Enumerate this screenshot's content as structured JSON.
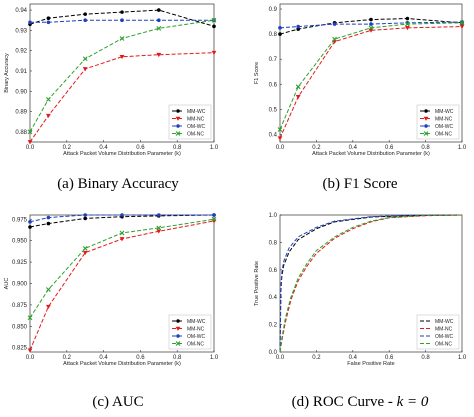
{
  "chart_data": [
    {
      "type": "line",
      "panel_index": "(a)",
      "caption": "(a) Binary Accuracy",
      "xlabel": "Attack Packet Volume Distribution Parameter (k)",
      "ylabel": "Binary Accuracy",
      "x": [
        0.0,
        0.1,
        0.3,
        0.5,
        0.7,
        1.0
      ],
      "xlim": [
        0.0,
        1.0
      ],
      "ylim": [
        0.875,
        0.943
      ],
      "xticks": [
        "0.0",
        "0.2",
        "0.4",
        "0.6",
        "0.8",
        "1.0"
      ],
      "yticks": [
        "0.88",
        "0.89",
        "0.90",
        "0.91",
        "0.92",
        "0.93",
        "0.94"
      ],
      "ytick_values": [
        0.88,
        0.89,
        0.9,
        0.91,
        0.92,
        0.93,
        0.94
      ],
      "legend_position": "bottom-right",
      "series": [
        {
          "name": "MM-WC",
          "color": "#000000",
          "dash": "4,2",
          "marker": "dot",
          "values": [
            0.933,
            0.936,
            0.938,
            0.939,
            0.94,
            0.932
          ]
        },
        {
          "name": "MM-NC",
          "color": "#e31a1c",
          "dash": "4,2",
          "marker": "tri",
          "values": [
            0.875,
            0.888,
            0.911,
            0.917,
            0.918,
            0.919
          ]
        },
        {
          "name": "OM-WC",
          "color": "#1f3fbf",
          "dash": "4,2",
          "marker": "dot",
          "values": [
            0.934,
            0.934,
            0.935,
            0.935,
            0.935,
            0.935
          ]
        },
        {
          "name": "OM-NC",
          "color": "#2ca02c",
          "dash": "4,2",
          "marker": "x",
          "values": [
            0.88,
            0.896,
            0.916,
            0.926,
            0.931,
            0.935
          ]
        }
      ]
    },
    {
      "type": "line",
      "panel_index": "(b)",
      "caption": "(b) F1 Score",
      "xlabel": "Attack Packet Volume Distribution Parameter (k)",
      "ylabel": "F1 Score",
      "x": [
        0.0,
        0.1,
        0.3,
        0.5,
        0.7,
        1.0
      ],
      "xlim": [
        0.0,
        1.0
      ],
      "ylim": [
        0.37,
        0.92
      ],
      "xticks": [
        "0.0",
        "0.2",
        "0.4",
        "0.6",
        "0.8",
        "1.0"
      ],
      "yticks": [
        "0.4",
        "0.5",
        "0.6",
        "0.7",
        "0.8",
        "0.9"
      ],
      "ytick_values": [
        0.4,
        0.5,
        0.6,
        0.7,
        0.8,
        0.9
      ],
      "legend_position": "bottom-right",
      "series": [
        {
          "name": "MM-WC",
          "color": "#000000",
          "dash": "4,2",
          "marker": "dot",
          "values": [
            0.8,
            0.82,
            0.845,
            0.858,
            0.862,
            0.845
          ]
        },
        {
          "name": "MM-NC",
          "color": "#e31a1c",
          "dash": "4,2",
          "marker": "tri",
          "values": [
            0.385,
            0.55,
            0.77,
            0.815,
            0.825,
            0.83
          ]
        },
        {
          "name": "OM-WC",
          "color": "#1f3fbf",
          "dash": "4,2",
          "marker": "dot",
          "values": [
            0.825,
            0.83,
            0.84,
            0.84,
            0.845,
            0.848
          ]
        },
        {
          "name": "OM-NC",
          "color": "#2ca02c",
          "dash": "4,2",
          "marker": "x",
          "values": [
            0.42,
            0.59,
            0.78,
            0.825,
            0.84,
            0.845
          ]
        }
      ]
    },
    {
      "type": "line",
      "panel_index": "(c)",
      "caption": "(c) AUC",
      "xlabel": "Attack Packet Volume Distribution Parameter (k)",
      "ylabel": "AUC",
      "x": [
        0.0,
        0.1,
        0.3,
        0.5,
        0.7,
        1.0
      ],
      "xlim": [
        0.0,
        1.0
      ],
      "ylim": [
        0.82,
        0.98
      ],
      "xticks": [
        "0.0",
        "0.2",
        "0.4",
        "0.6",
        "0.8",
        "1.0"
      ],
      "yticks": [
        "0.825",
        "0.850",
        "0.875",
        "0.900",
        "0.925",
        "0.950",
        "0.975"
      ],
      "ytick_values": [
        0.825,
        0.85,
        0.875,
        0.9,
        0.925,
        0.95,
        0.975
      ],
      "legend_position": "bottom-right",
      "series": [
        {
          "name": "MM-WC",
          "color": "#000000",
          "dash": "4,2",
          "marker": "dot",
          "values": [
            0.966,
            0.97,
            0.976,
            0.978,
            0.979,
            0.98
          ]
        },
        {
          "name": "MM-NC",
          "color": "#e31a1c",
          "dash": "4,2",
          "marker": "tri",
          "values": [
            0.822,
            0.873,
            0.936,
            0.952,
            0.961,
            0.973
          ]
        },
        {
          "name": "OM-WC",
          "color": "#1f3fbf",
          "dash": "4,2",
          "marker": "dot",
          "values": [
            0.972,
            0.977,
            0.98,
            0.98,
            0.98,
            0.98
          ]
        },
        {
          "name": "OM-NC",
          "color": "#2ca02c",
          "dash": "4,2",
          "marker": "x",
          "values": [
            0.86,
            0.893,
            0.941,
            0.959,
            0.965,
            0.975
          ]
        }
      ]
    },
    {
      "type": "line",
      "panel_index": "(d)",
      "caption_prefix": "(d) ROC Curve - ",
      "caption_math": "k = 0",
      "xlabel": "False Positive Rate",
      "ylabel": "True Positive Rate",
      "xlim": [
        0.0,
        1.0
      ],
      "ylim": [
        0.0,
        1.0
      ],
      "xticks": [
        "0.0",
        "0.2",
        "0.4",
        "0.6",
        "0.8",
        "1.0"
      ],
      "yticks": [
        "0.0",
        "0.2",
        "0.4",
        "0.6",
        "0.8",
        "1.0"
      ],
      "ytick_values": [
        0.0,
        0.2,
        0.4,
        0.6,
        0.8,
        1.0
      ],
      "legend_position": "bottom-right",
      "series": [
        {
          "name": "MM-WC",
          "color": "#000000",
          "dash": "4,2",
          "points": [
            [
              0,
              0
            ],
            [
              0.005,
              0.45
            ],
            [
              0.01,
              0.55
            ],
            [
              0.02,
              0.63
            ],
            [
              0.05,
              0.73
            ],
            [
              0.1,
              0.82
            ],
            [
              0.2,
              0.9
            ],
            [
              0.3,
              0.95
            ],
            [
              0.5,
              0.985
            ],
            [
              0.7,
              0.995
            ],
            [
              1,
              1
            ]
          ]
        },
        {
          "name": "MM-NC",
          "color": "#e31a1c",
          "dash": "4,2",
          "points": [
            [
              0,
              0
            ],
            [
              0.01,
              0.08
            ],
            [
              0.03,
              0.22
            ],
            [
              0.06,
              0.38
            ],
            [
              0.1,
              0.52
            ],
            [
              0.15,
              0.63
            ],
            [
              0.2,
              0.72
            ],
            [
              0.3,
              0.83
            ],
            [
              0.4,
              0.9
            ],
            [
              0.5,
              0.95
            ],
            [
              0.6,
              0.98
            ],
            [
              0.8,
              0.995
            ],
            [
              1,
              1
            ]
          ]
        },
        {
          "name": "OM-WC",
          "color": "#1f3fbf",
          "dash": "4,2",
          "points": [
            [
              0,
              0
            ],
            [
              0.005,
              0.48
            ],
            [
              0.01,
              0.58
            ],
            [
              0.02,
              0.66
            ],
            [
              0.05,
              0.76
            ],
            [
              0.1,
              0.84
            ],
            [
              0.2,
              0.91
            ],
            [
              0.3,
              0.955
            ],
            [
              0.5,
              0.988
            ],
            [
              0.7,
              0.997
            ],
            [
              1,
              1
            ]
          ]
        },
        {
          "name": "OM-NC",
          "color": "#2ca02c",
          "dash": "4,2",
          "points": [
            [
              0,
              0
            ],
            [
              0.01,
              0.1
            ],
            [
              0.03,
              0.25
            ],
            [
              0.06,
              0.4
            ],
            [
              0.1,
              0.54
            ],
            [
              0.15,
              0.65
            ],
            [
              0.2,
              0.74
            ],
            [
              0.3,
              0.84
            ],
            [
              0.4,
              0.91
            ],
            [
              0.5,
              0.955
            ],
            [
              0.6,
              0.982
            ],
            [
              0.8,
              0.996
            ],
            [
              1,
              1
            ]
          ]
        }
      ]
    }
  ]
}
